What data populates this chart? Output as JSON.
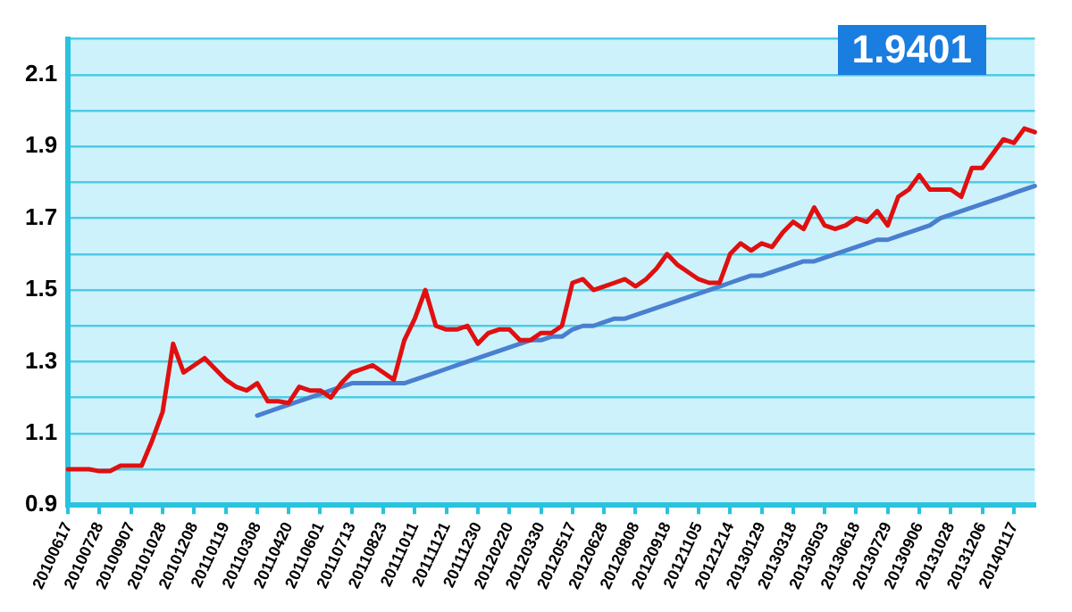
{
  "chart_data": {
    "type": "line",
    "categories": [
      "20100617",
      null,
      null,
      "20100728",
      null,
      null,
      "20100907",
      null,
      null,
      "20101028",
      null,
      null,
      "20101208",
      null,
      null,
      "20110119",
      null,
      null,
      "20110308",
      null,
      null,
      "20110420",
      null,
      null,
      "20110601",
      null,
      null,
      "20110713",
      null,
      null,
      "20110823",
      null,
      null,
      "20111011",
      null,
      null,
      "20111121",
      null,
      null,
      "20111230",
      null,
      null,
      "20120220",
      null,
      null,
      "20120330",
      null,
      null,
      "20120517",
      null,
      null,
      "20120628",
      null,
      null,
      "20120808",
      null,
      null,
      "20120918",
      null,
      null,
      "20121105",
      null,
      null,
      "20121214",
      null,
      null,
      "20130129",
      null,
      null,
      "20130318",
      null,
      null,
      "20130503",
      null,
      null,
      "20130618",
      null,
      null,
      "20130729",
      null,
      null,
      "20130906",
      null,
      null,
      "20131028",
      null,
      null,
      "20131206",
      null,
      null,
      "20140117",
      null,
      null
    ],
    "series": [
      {
        "color": "#e01010",
        "values": [
          1.0,
          1.0,
          1.0,
          0.995,
          0.995,
          1.01,
          1.01,
          1.01,
          1.08,
          1.16,
          1.35,
          1.27,
          1.29,
          1.31,
          1.28,
          1.25,
          1.23,
          1.22,
          1.24,
          1.19,
          1.19,
          1.185,
          1.23,
          1.22,
          1.22,
          1.2,
          1.24,
          1.27,
          1.28,
          1.29,
          1.27,
          1.25,
          1.36,
          1.42,
          1.5,
          1.4,
          1.39,
          1.39,
          1.4,
          1.35,
          1.38,
          1.39,
          1.39,
          1.36,
          1.36,
          1.38,
          1.38,
          1.4,
          1.52,
          1.53,
          1.5,
          1.51,
          1.52,
          1.53,
          1.51,
          1.53,
          1.56,
          1.6,
          1.57,
          1.55,
          1.53,
          1.52,
          1.52,
          1.6,
          1.63,
          1.61,
          1.63,
          1.62,
          1.66,
          1.69,
          1.67,
          1.73,
          1.68,
          1.67,
          1.68,
          1.7,
          1.69,
          1.72,
          1.68,
          1.76,
          1.78,
          1.82,
          1.78,
          1.78,
          1.78,
          1.76,
          1.84,
          1.84,
          1.88,
          1.92,
          1.91,
          1.95,
          1.94
        ]
      },
      {
        "color": "#4a7fd0",
        "values": [
          null,
          null,
          null,
          null,
          null,
          null,
          null,
          null,
          null,
          null,
          null,
          null,
          null,
          null,
          null,
          null,
          null,
          null,
          1.15,
          1.16,
          1.17,
          1.18,
          1.19,
          1.2,
          1.21,
          1.22,
          1.23,
          1.24,
          1.24,
          1.24,
          1.24,
          1.24,
          1.24,
          1.25,
          1.26,
          1.27,
          1.28,
          1.29,
          1.3,
          1.31,
          1.32,
          1.33,
          1.34,
          1.35,
          1.36,
          1.36,
          1.37,
          1.37,
          1.39,
          1.4,
          1.4,
          1.41,
          1.42,
          1.42,
          1.43,
          1.44,
          1.45,
          1.46,
          1.47,
          1.48,
          1.49,
          1.5,
          1.51,
          1.52,
          1.53,
          1.54,
          1.54,
          1.55,
          1.56,
          1.57,
          1.58,
          1.58,
          1.59,
          1.6,
          1.61,
          1.62,
          1.63,
          1.64,
          1.64,
          1.65,
          1.66,
          1.67,
          1.68,
          1.7,
          1.71,
          1.72,
          1.73,
          1.74,
          1.75,
          1.76,
          1.77,
          1.78,
          1.79
        ]
      }
    ],
    "ylim": [
      0.9,
      2.2
    ],
    "yticks": [
      0.9,
      {
        "value": 1.0,
        "label": null
      },
      1.1,
      {
        "value": 1.2,
        "label": null
      },
      1.3,
      {
        "value": 1.4,
        "label": null
      },
      1.5,
      {
        "value": 1.6,
        "label": null
      },
      1.7,
      {
        "value": 1.8,
        "label": null
      },
      1.9,
      {
        "value": 2.0,
        "label": null
      },
      2.1,
      {
        "value": 2.2,
        "label": null
      }
    ],
    "grid": "y",
    "legend": false,
    "marker": "none",
    "line_style": "solid",
    "annotations": [
      "1.9401"
    ]
  }
}
